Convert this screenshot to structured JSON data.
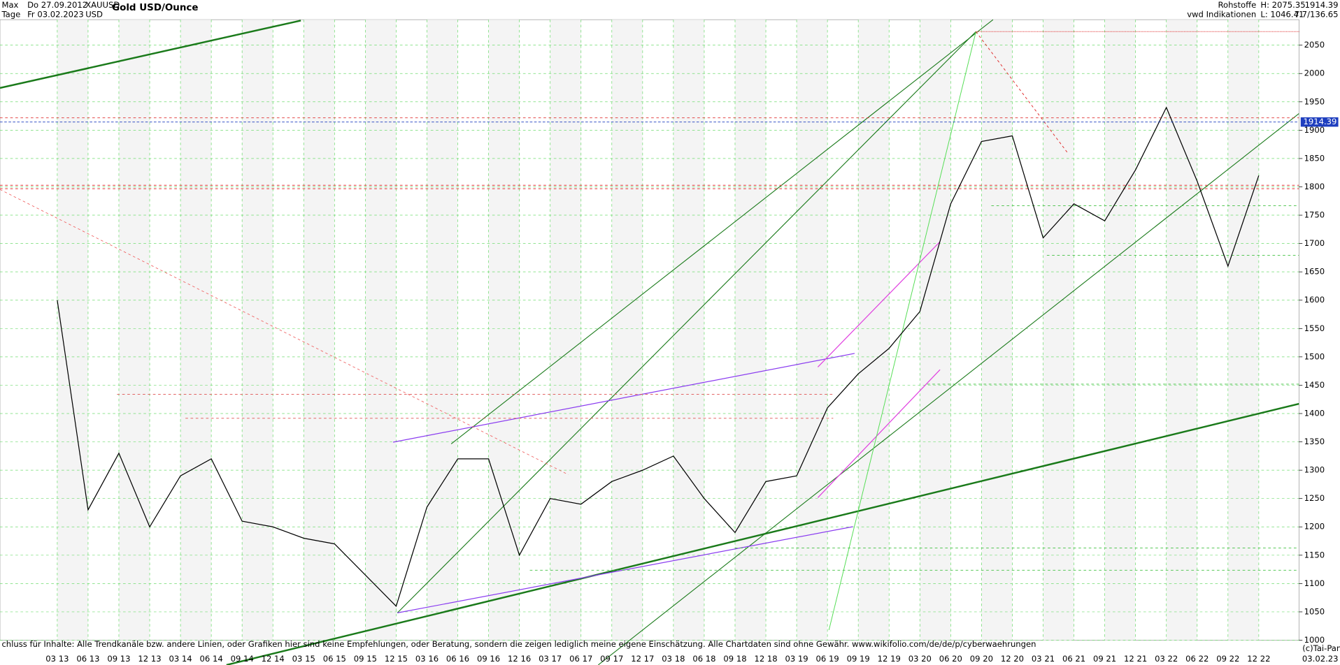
{
  "header": {
    "range": "Max",
    "start": "Do 27.09.2012",
    "symbol": "XAUUSD",
    "period": "Tage",
    "end": "Fr 03.02.2023",
    "currency": "USD",
    "group": "Rohstoffe",
    "source": "vwd Indikationen",
    "high": "H: 2075.35",
    "low": "L: 1046.41",
    "last": "1914.39",
    "change": "7.7/136.65",
    "last_date": "03.02.23",
    "copyright": "(c)Tai-Pan"
  },
  "footer": "chluss für Inhalte: Alle Trendkanäle bzw. andere Linien, oder Grafiken hier sind keine Empfehlungen, oder Beratung, sondern die zeigen lediglich meine eigene Einschätzung. Alle Chartdaten sind ohne Gewähr.  www.wikifolio.com/de/de/p/cyberwaehrungen",
  "chart_data": {
    "type": "line",
    "title": "Gold USD/Ounce",
    "categories": [
      "03 13",
      "06 13",
      "09 13",
      "12 13",
      "03 14",
      "06 14",
      "09 14",
      "12 14",
      "03 15",
      "06 15",
      "09 15",
      "12 15",
      "03 16",
      "06 16",
      "09 16",
      "12 16",
      "03 17",
      "06 17",
      "09 17",
      "12 17",
      "03 18",
      "06 18",
      "09 18",
      "12 18",
      "03 19",
      "06 19",
      "09 19",
      "12 19",
      "03 20",
      "06 20",
      "09 20",
      "12 20",
      "03 21",
      "06 21",
      "09 21",
      "12 21",
      "03 22",
      "06 22",
      "09 22",
      "12 22"
    ],
    "series": [
      {
        "name": "XAUUSD",
        "color": "#000000",
        "values": [
          1600,
          1230,
          1330,
          1200,
          1290,
          1320,
          1210,
          1200,
          1180,
          1170,
          1115,
          1060,
          1235,
          1320,
          1320,
          1150,
          1250,
          1240,
          1280,
          1300,
          1325,
          1250,
          1190,
          1280,
          1290,
          1410,
          1470,
          1515,
          1580,
          1770,
          1880,
          1890,
          1710,
          1770,
          1740,
          1830,
          1940,
          1810,
          1660,
          1820
        ]
      }
    ],
    "current": 1914.39,
    "current_color": "#1f3fbf",
    "ylim": [
      1000,
      2095
    ],
    "yticks": [
      1000,
      1050,
      1100,
      1150,
      1200,
      1250,
      1300,
      1350,
      1400,
      1450,
      1500,
      1550,
      1600,
      1650,
      1700,
      1750,
      1800,
      1850,
      1900,
      1950,
      2000,
      2050
    ],
    "grid": true
  }
}
